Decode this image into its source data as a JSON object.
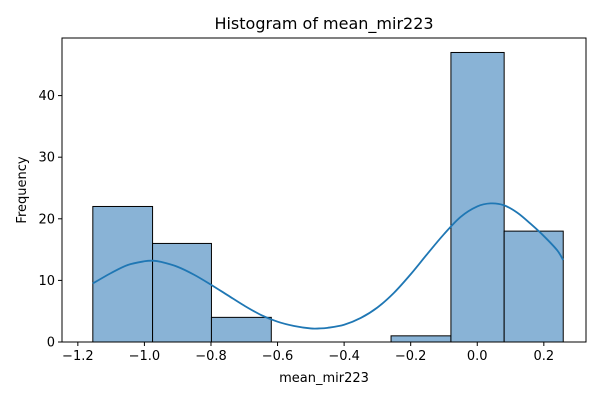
{
  "chart_data": {
    "type": "bar",
    "title": "Histogram of mean_mir223",
    "xlabel": "mean_mir223",
    "ylabel": "Frequency",
    "xlim": [
      -1.2476,
      0.3267
    ],
    "ylim": [
      0,
      49.35
    ],
    "x_ticks": [
      -1.2,
      -1.0,
      -0.8,
      -0.6,
      -0.4,
      -0.2,
      0.0,
      0.2
    ],
    "x_tick_labels": [
      "−1.2",
      "−1.0",
      "−0.8",
      "−0.6",
      "−0.4",
      "−0.2",
      "0.0",
      "0.2"
    ],
    "y_ticks": [
      0,
      10,
      20,
      30,
      40
    ],
    "y_tick_labels": [
      "0",
      "10",
      "20",
      "30",
      "40"
    ],
    "bins": [
      {
        "x0": -1.155,
        "x1": -0.9755,
        "count": 22
      },
      {
        "x0": -0.9755,
        "x1": -0.7986,
        "count": 16
      },
      {
        "x0": -0.7986,
        "x1": -0.6188,
        "count": 4
      },
      {
        "x0": -0.6188,
        "x1": -0.4389,
        "count": 0
      },
      {
        "x0": -0.4389,
        "x1": -0.259,
        "count": 0
      },
      {
        "x0": -0.259,
        "x1": -0.0791,
        "count": 1
      },
      {
        "x0": -0.0791,
        "x1": 0.0808,
        "count": 47
      },
      {
        "x0": 0.0808,
        "x1": 0.2583,
        "count": 18
      }
    ],
    "kde": {
      "x": [
        -1.155,
        -1.1,
        -1.05,
        -1.0,
        -0.975,
        -0.95,
        -0.9,
        -0.85,
        -0.8,
        -0.75,
        -0.7,
        -0.65,
        -0.6,
        -0.55,
        -0.5,
        -0.475,
        -0.45,
        -0.4,
        -0.35,
        -0.3,
        -0.25,
        -0.2,
        -0.15,
        -0.1,
        -0.05,
        0.0,
        0.04,
        0.08,
        0.12,
        0.16,
        0.2,
        0.24,
        0.258
      ],
      "y": [
        9.5,
        11.2,
        12.5,
        13.1,
        13.2,
        13.0,
        12.2,
        10.9,
        9.3,
        7.6,
        5.9,
        4.4,
        3.3,
        2.6,
        2.2,
        2.2,
        2.3,
        2.8,
        3.9,
        5.6,
        8.0,
        11.0,
        14.3,
        17.5,
        20.3,
        22.0,
        22.5,
        22.2,
        21.0,
        19.2,
        17.2,
        14.9,
        13.3
      ]
    },
    "colors": {
      "bar_fill": "#89b3d6",
      "bar_edge": "#000000",
      "kde_line": "#1f77b4"
    },
    "grid": false,
    "legend": "none"
  }
}
